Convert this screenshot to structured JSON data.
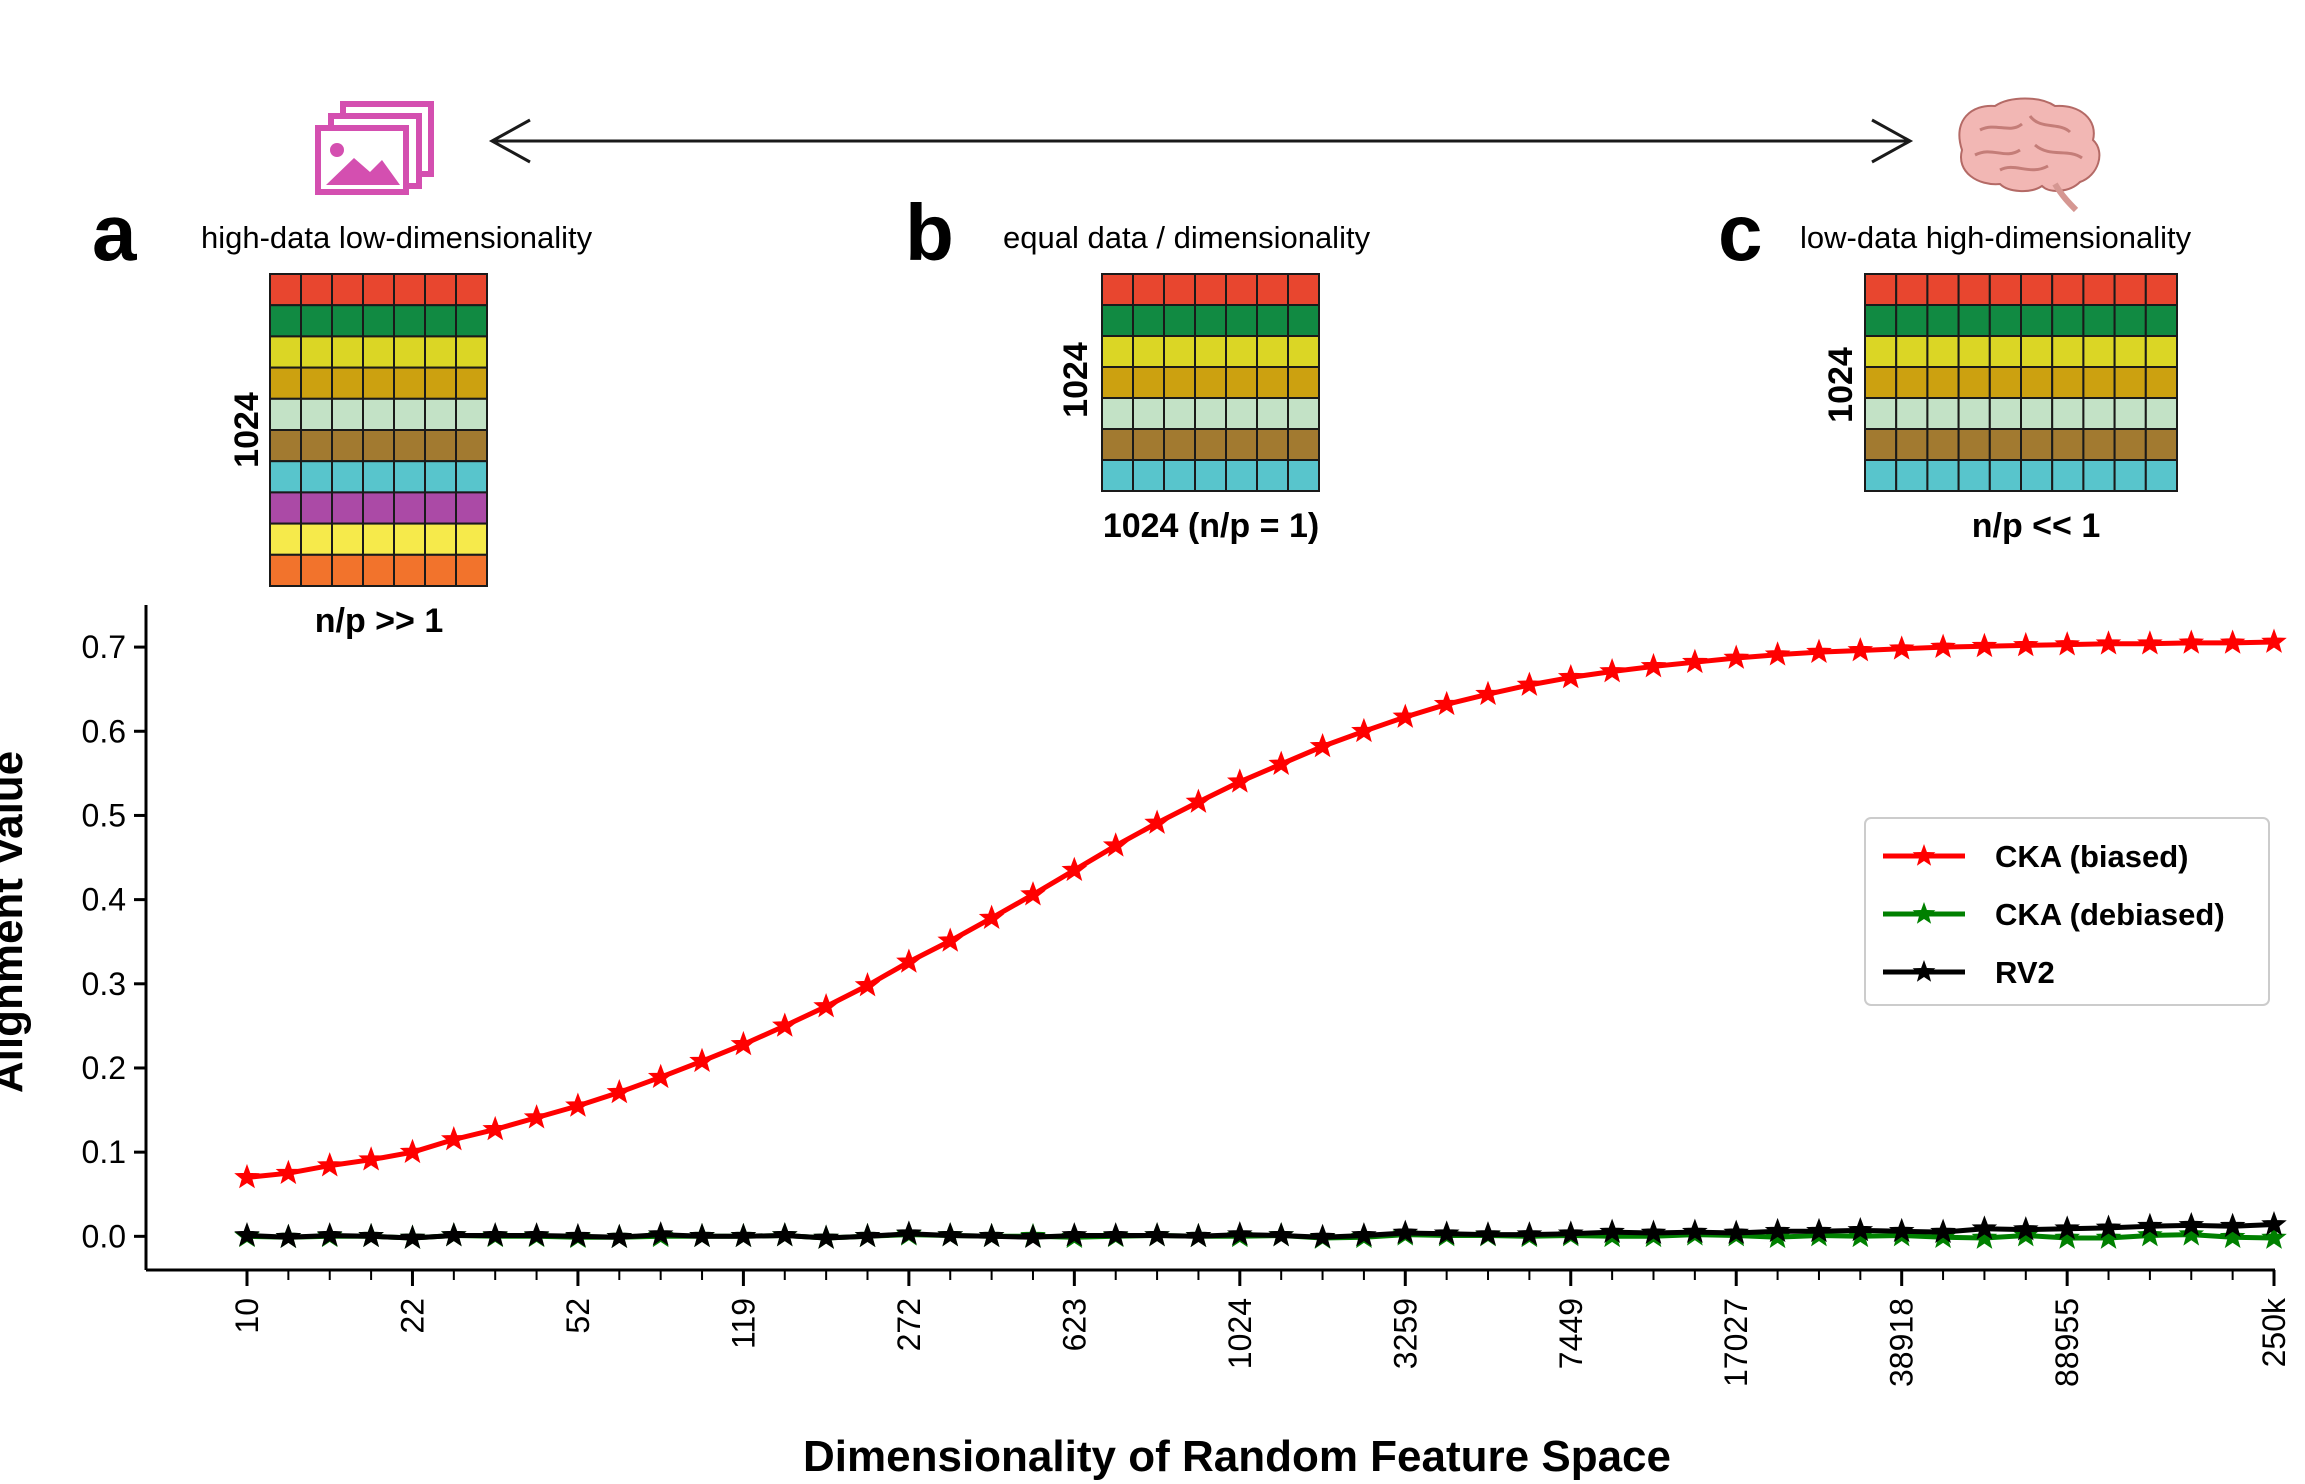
{
  "figure": {
    "top_arrow": "double-headed",
    "left_icon": "image-gallery-icon",
    "right_icon": "brain-icon",
    "icon_colors": {
      "images": "#d44fb0",
      "brain": "#f2b7b4"
    }
  },
  "panels": [
    {
      "letter": "a",
      "caption": "high-data low-dimensionality",
      "row_label": "1024",
      "col_label": "n/p >> 1",
      "rows": 10,
      "cols": 7
    },
    {
      "letter": "b",
      "caption": "equal data / dimensionality",
      "row_label": "1024",
      "col_label": "1024 (n/p = 1)",
      "rows": 7,
      "cols": 7
    },
    {
      "letter": "c",
      "caption": "low-data high-dimensionality",
      "row_label": "1024",
      "col_label": "n/p << 1",
      "rows": 7,
      "cols": 10
    }
  ],
  "row_colors": [
    "#e8462f",
    "#118a42",
    "#dbd625",
    "#cca110",
    "#c3e2c6",
    "#a27a30",
    "#58c5cc",
    "#ab4aa6",
    "#f6ea4b",
    "#f2732c"
  ],
  "chart_data": {
    "type": "line",
    "xlabel": "Dimensionality of Random Feature Space",
    "ylabel": "Alignment Value",
    "ylim": [
      -0.04,
      0.75
    ],
    "yticks": [
      0.0,
      0.1,
      0.2,
      0.3,
      0.4,
      0.5,
      0.6,
      0.7
    ],
    "ytick_labels": [
      "0.0",
      "0.1",
      "0.2",
      "0.3",
      "0.4",
      "0.5",
      "0.6",
      "0.7"
    ],
    "x_index_range": [
      0,
      49
    ],
    "xticks_index": [
      0,
      4,
      8,
      12,
      16,
      20,
      24,
      28,
      32,
      36,
      40,
      44,
      49
    ],
    "xtick_labels": [
      "10",
      "22",
      "52",
      "119",
      "272",
      "623",
      "1024",
      "3259",
      "7449",
      "17027",
      "38918",
      "88955",
      "250k"
    ],
    "grid": false,
    "legend_position": "center-right",
    "series": [
      {
        "name": "CKA (biased)",
        "color": "#ff0000",
        "marker": "star",
        "values": [
          0.07,
          0.075,
          0.084,
          0.091,
          0.1,
          0.115,
          0.127,
          0.141,
          0.155,
          0.171,
          0.189,
          0.208,
          0.228,
          0.25,
          0.273,
          0.298,
          0.326,
          0.351,
          0.378,
          0.406,
          0.435,
          0.464,
          0.491,
          0.516,
          0.54,
          0.561,
          0.582,
          0.6,
          0.617,
          0.632,
          0.644,
          0.655,
          0.664,
          0.671,
          0.677,
          0.682,
          0.687,
          0.691,
          0.694,
          0.696,
          0.698,
          0.7,
          0.701,
          0.702,
          0.703,
          0.704,
          0.704,
          0.705,
          0.705,
          0.706
        ]
      },
      {
        "name": "CKA (debiased)",
        "color": "#008000",
        "marker": "star",
        "values": [
          0.0,
          -0.001,
          0.0,
          0.0,
          -0.002,
          0.001,
          0.0,
          0.0,
          -0.001,
          -0.001,
          0.0,
          0.0,
          0.0,
          0.001,
          -0.002,
          0.0,
          0.002,
          0.001,
          0.0,
          0.0,
          -0.001,
          0.0,
          0.001,
          0.0,
          0.0,
          0.001,
          -0.002,
          -0.001,
          0.002,
          0.001,
          0.001,
          0.0,
          0.001,
          0.0,
          0.0,
          0.002,
          0.001,
          -0.001,
          0.001,
          0.0,
          0.001,
          -0.001,
          -0.002,
          0.001,
          -0.002,
          -0.002,
          0.001,
          0.002,
          -0.001,
          -0.002
        ]
      },
      {
        "name": "RV2",
        "color": "#000000",
        "marker": "star",
        "values": [
          0.001,
          -0.001,
          0.001,
          0.0,
          -0.002,
          0.001,
          0.001,
          0.001,
          0.0,
          -0.001,
          0.002,
          0.0,
          0.0,
          0.001,
          -0.002,
          0.0,
          0.003,
          0.001,
          0.0,
          -0.001,
          0.001,
          0.001,
          0.001,
          0.0,
          0.002,
          0.001,
          -0.001,
          0.001,
          0.004,
          0.003,
          0.002,
          0.002,
          0.003,
          0.005,
          0.004,
          0.005,
          0.004,
          0.006,
          0.006,
          0.007,
          0.006,
          0.005,
          0.009,
          0.008,
          0.009,
          0.01,
          0.012,
          0.013,
          0.012,
          0.014
        ]
      }
    ]
  }
}
